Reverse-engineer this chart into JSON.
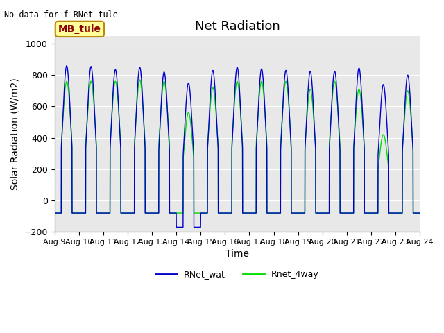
{
  "title": "Net Radiation",
  "xlabel": "Time",
  "ylabel": "Solar Radiation (W/m2)",
  "top_left_text": "No data for f_RNet_tule",
  "annotation_text": "MB_tule",
  "ylim": [
    -200,
    1050
  ],
  "xlim": [
    0,
    15
  ],
  "x_tick_labels": [
    "Aug 9",
    "Aug 10",
    "Aug 11",
    "Aug 12",
    "Aug 13",
    "Aug 14",
    "Aug 15",
    "Aug 16",
    "Aug 17",
    "Aug 18",
    "Aug 19",
    "Aug 20",
    "Aug 21",
    "Aug 22",
    "Aug 23",
    "Aug 24"
  ],
  "yticks": [
    -200,
    0,
    200,
    400,
    600,
    800,
    1000
  ],
  "line1_color": "#0000cc",
  "line2_color": "#00dd00",
  "line1_label": "RNet_wat",
  "line2_label": "Rnet_4way",
  "background_color": "#e8e8e8",
  "title_fontsize": 13,
  "label_fontsize": 10,
  "tick_fontsize": 8,
  "annotation_fontsize": 10
}
